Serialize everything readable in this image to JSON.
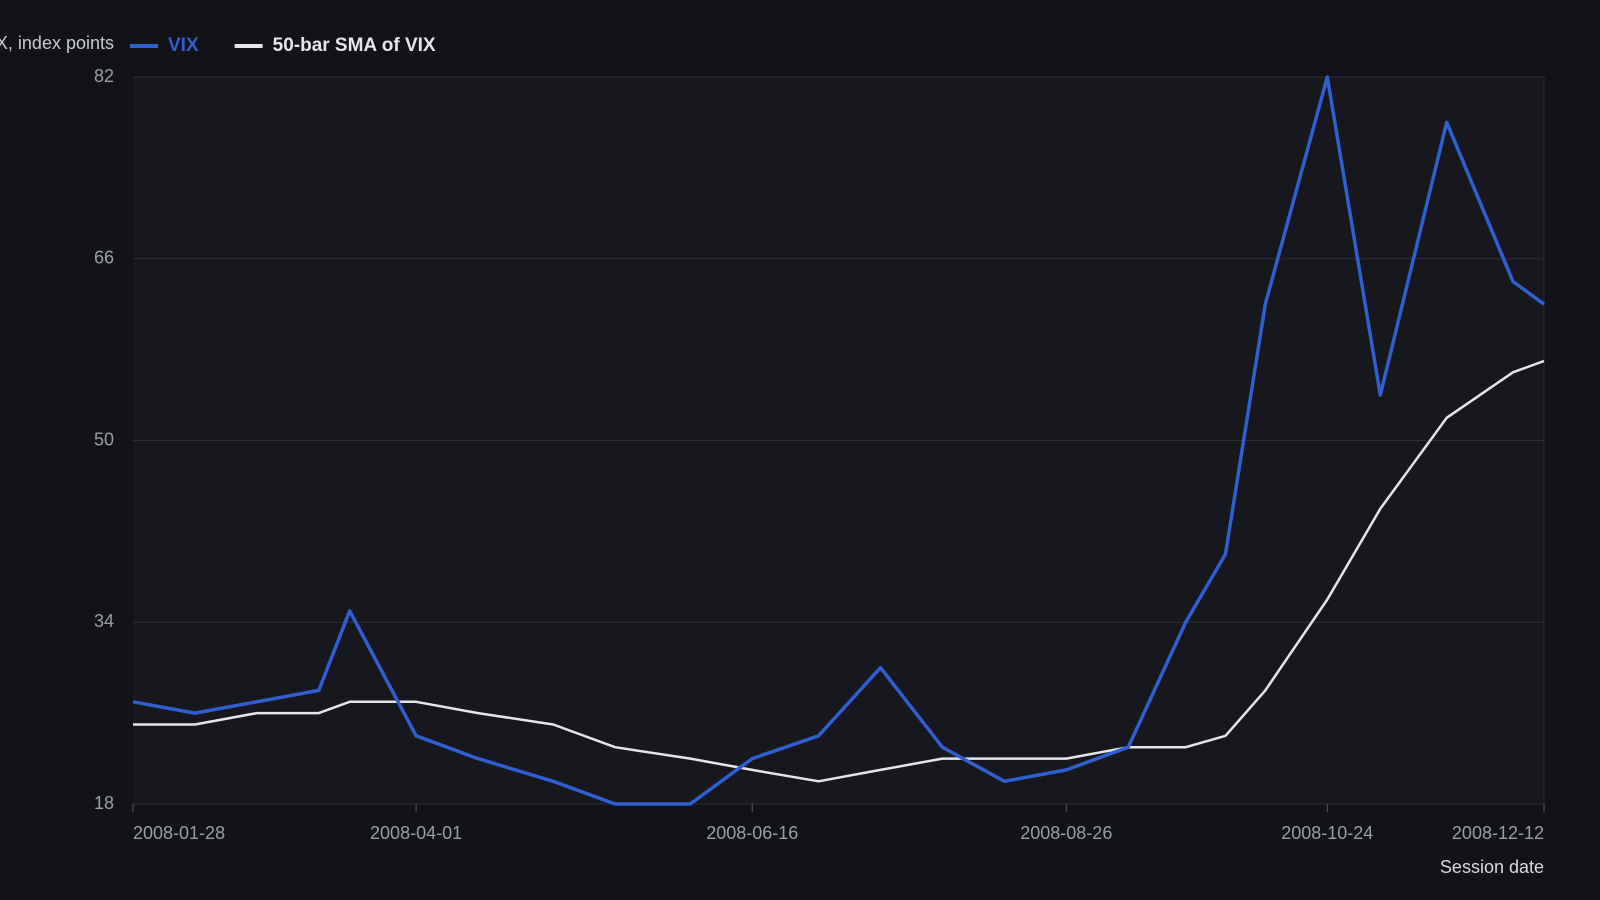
{
  "chart_data": {
    "type": "line",
    "y_label": "VIX, index points",
    "x_label": "Session date",
    "x": [
      "2008-01-28",
      "2008-02-11",
      "2008-02-25",
      "2008-03-10",
      "2008-03-17",
      "2008-04-01",
      "2008-04-15",
      "2008-05-02",
      "2008-05-16",
      "2008-06-02",
      "2008-06-16",
      "2008-07-01",
      "2008-07-15",
      "2008-07-29",
      "2008-08-12",
      "2008-08-26",
      "2008-09-09",
      "2008-09-22",
      "2008-10-01",
      "2008-10-10",
      "2008-10-24",
      "2008-11-05",
      "2008-11-20",
      "2008-12-05",
      "2008-12-12"
    ],
    "series": [
      {
        "name": "VIX",
        "color": "#2f5fd0",
        "values": [
          27,
          26,
          27,
          28,
          35,
          24,
          22,
          20,
          18,
          18,
          22,
          24,
          30,
          23,
          20,
          21,
          23,
          34,
          40,
          62,
          82,
          54,
          78,
          64,
          62
        ]
      },
      {
        "name": "50-bar SMA of VIX",
        "color": "#e6e6e6",
        "values": [
          25,
          25,
          26,
          26,
          27,
          27,
          26,
          25,
          23,
          22,
          21,
          20,
          21,
          22,
          22,
          22,
          23,
          23,
          24,
          28,
          36,
          44,
          52,
          56,
          57
        ]
      }
    ],
    "xlim": [
      "2008-01-28",
      "2008-12-12"
    ],
    "xticks": [
      "2008-01-28",
      "2008-04-01",
      "2008-06-16",
      "2008-08-26",
      "2008-10-24",
      "2008-12-12"
    ],
    "ylim": [
      18,
      82
    ],
    "yticks": [
      18,
      34,
      50,
      66,
      82
    ],
    "grid": true
  }
}
